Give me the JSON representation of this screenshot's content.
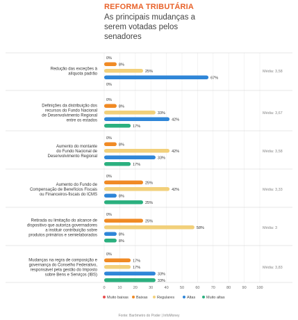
{
  "header": {
    "title": "REFORMA TRIBUTÁRIA",
    "subtitle": "As principais mudanças a serem votadas pelos senadores"
  },
  "source": "Fonte: Barômetro do Poder | InfoMoney",
  "colors": {
    "Muito baixas": "#e94e4e",
    "Baixas": "#f08a24",
    "Regulares": "#f2d07a",
    "Altas": "#2f86d8",
    "Muito altas": "#2bb07f"
  },
  "chart_data": {
    "type": "bar",
    "orientation": "horizontal",
    "xlim": [
      0,
      100
    ],
    "xticks": [
      "0",
      "10",
      "20",
      "30",
      "40",
      "50",
      "60",
      "70",
      "80",
      "90",
      "100"
    ],
    "legend_position": "bottom",
    "series_names": [
      "Muito baixas",
      "Baixas",
      "Regulares",
      "Altas",
      "Muito altas"
    ],
    "groups": [
      {
        "label": [
          "Redução das exceções à",
          "alíquota padrão"
        ],
        "values": [
          0,
          8,
          25,
          67,
          0
        ],
        "media": "Média: 3,58"
      },
      {
        "label": [
          "Definições da distribuição dos",
          "recursos do Fundo Nacional",
          "de Desenvolvimento Regional",
          "entre os estados"
        ],
        "values": [
          0,
          8,
          33,
          42,
          17
        ],
        "media": "Média: 3,67"
      },
      {
        "label": [
          "Aumento do montante",
          "do Fundo Nacional de",
          "Desenvolvimento Regional"
        ],
        "values": [
          0,
          8,
          42,
          33,
          17
        ],
        "media": "Média: 3,58"
      },
      {
        "label": [
          "Aumento do Fundo de",
          "Compensação de Benefícios Fiscais",
          "ou Financeiros-fiscais do ICMS"
        ],
        "values": [
          0,
          25,
          42,
          8,
          25
        ],
        "media": "Média: 3,33"
      },
      {
        "label": [
          "Retirada ou limitação do alcance de",
          "dispositivo que autoriza governadores",
          "a instituir contribuição sobre",
          "produtos primários e semielaborados"
        ],
        "values": [
          0,
          25,
          58,
          8,
          8
        ],
        "media": "Média: 3"
      },
      {
        "label": [
          "Mudanças na regra de composição e",
          "governança do Conselho Federativo,",
          "responsável pela gestão do Imposto",
          "sobre Bens e Serviços (IBS)"
        ],
        "values": [
          0,
          17,
          17,
          33,
          33
        ],
        "media": "Média: 3,83"
      }
    ]
  }
}
